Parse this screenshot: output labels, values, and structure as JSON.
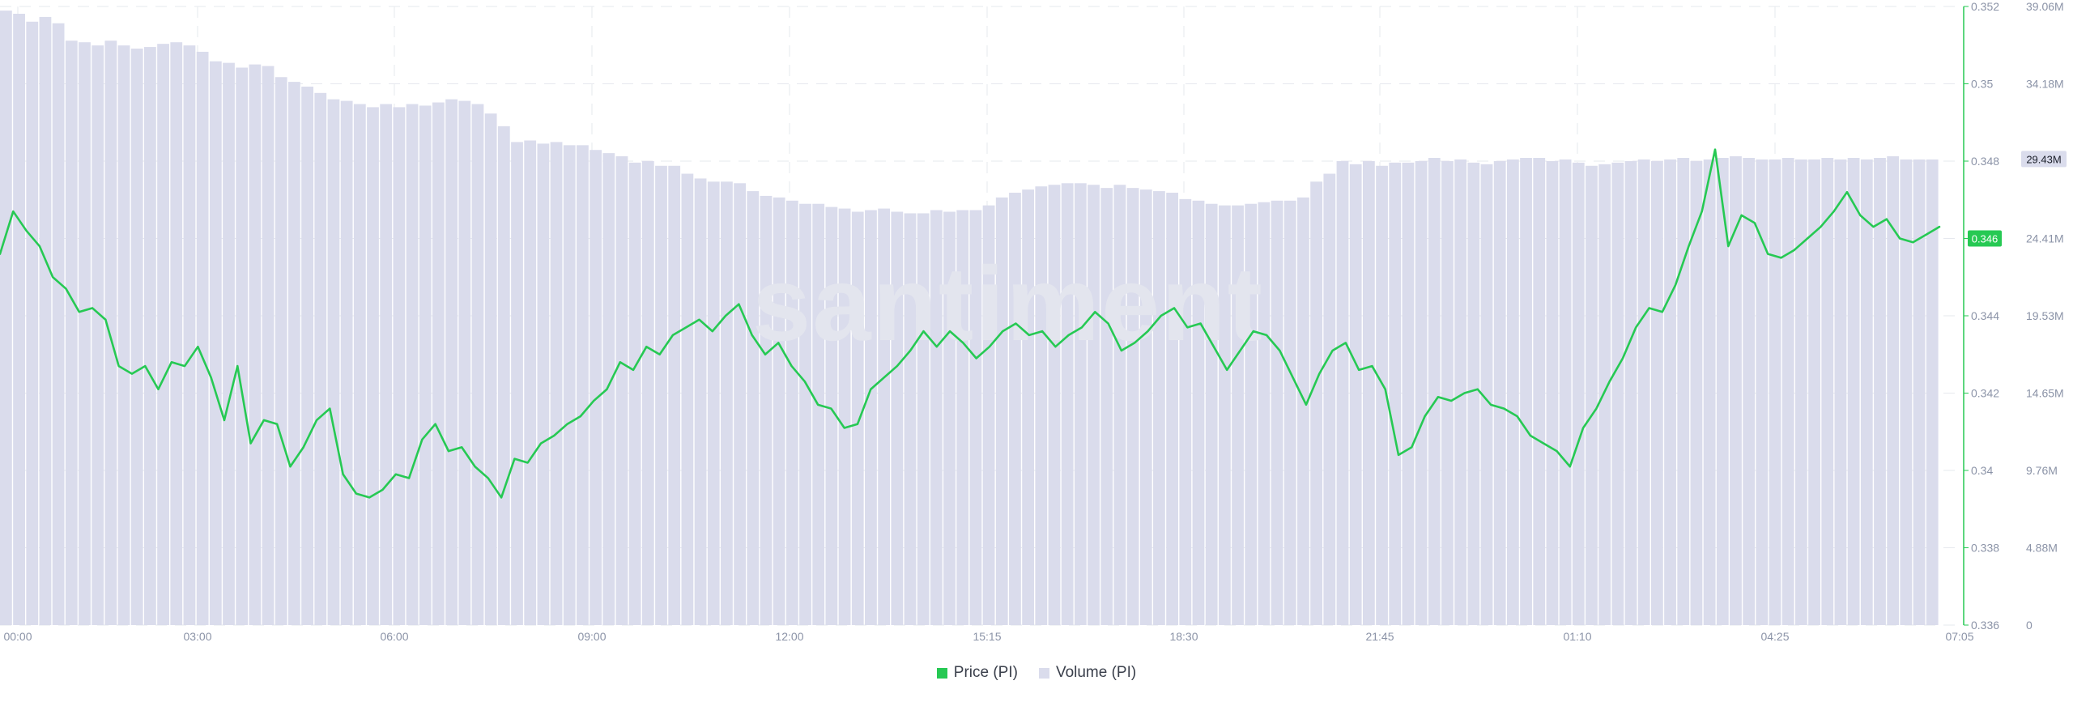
{
  "chart_data": {
    "type": "bar+line",
    "watermark": "santiment",
    "x_tick_labels": [
      "00:00",
      "03:00",
      "06:00",
      "09:00",
      "12:00",
      "15:15",
      "18:30",
      "21:45",
      "01:10",
      "04:25",
      "07:05"
    ],
    "price_axis": {
      "ticks": [
        "0.336",
        "0.338",
        "0.34",
        "0.342",
        "0.344",
        "0.346",
        "0.348",
        "0.35",
        "0.352"
      ],
      "ylim": [
        0.336,
        0.352
      ],
      "current_value": "0.346",
      "color": "#26c953"
    },
    "volume_axis": {
      "ticks": [
        "0",
        "4.88M",
        "9.76M",
        "14.65M",
        "19.53M",
        "24.41M",
        "29.43M",
        "34.18M",
        "39.06M"
      ],
      "ylim": [
        0,
        39.06
      ],
      "current_value": "29.43M",
      "color": "#dadcec"
    },
    "series": [
      {
        "name": "Price (PI)",
        "axis": "price",
        "color": "#26c953",
        "values": [
          0.3456,
          0.3467,
          0.3462,
          0.3458,
          0.345,
          0.3447,
          0.3441,
          0.3442,
          0.3439,
          0.3427,
          0.3425,
          0.3427,
          0.3421,
          0.3428,
          0.3427,
          0.3432,
          0.3424,
          0.3413,
          0.3427,
          0.3407,
          0.3413,
          0.3412,
          0.3401,
          0.3406,
          0.3413,
          0.3416,
          0.3399,
          0.3394,
          0.3393,
          0.3395,
          0.3399,
          0.3398,
          0.3408,
          0.3412,
          0.3405,
          0.3406,
          0.3401,
          0.3398,
          0.3393,
          0.3403,
          0.3402,
          0.3407,
          0.3409,
          0.3412,
          0.3414,
          0.3418,
          0.3421,
          0.3428,
          0.3426,
          0.3432,
          0.343,
          0.3435,
          0.3437,
          0.3439,
          0.3436,
          0.344,
          0.3443,
          0.3435,
          0.343,
          0.3433,
          0.3427,
          0.3423,
          0.3417,
          0.3416,
          0.3411,
          0.3412,
          0.3421,
          0.3424,
          0.3427,
          0.3431,
          0.3436,
          0.3432,
          0.3436,
          0.3433,
          0.3429,
          0.3432,
          0.3436,
          0.3438,
          0.3435,
          0.3436,
          0.3432,
          0.3435,
          0.3437,
          0.3441,
          0.3438,
          0.3431,
          0.3433,
          0.3436,
          0.344,
          0.3442,
          0.3437,
          0.3438,
          0.3432,
          0.3426,
          0.3431,
          0.3436,
          0.3435,
          0.3431,
          0.3424,
          0.3417,
          0.3425,
          0.3431,
          0.3433,
          0.3426,
          0.3427,
          0.3421,
          0.3404,
          0.3406,
          0.3414,
          0.3419,
          0.3418,
          0.342,
          0.3421,
          0.3417,
          0.3416,
          0.3414,
          0.3409,
          0.3407,
          0.3405,
          0.3401,
          0.3411,
          0.3416,
          0.3423,
          0.3429,
          0.3437,
          0.3442,
          0.3441,
          0.3448,
          0.3458,
          0.3467,
          0.3483,
          0.3458,
          0.3466,
          0.3464,
          0.3456,
          0.3455,
          0.3457,
          0.346,
          0.3463,
          0.3467,
          0.3472,
          0.3466,
          0.3463,
          0.3465,
          0.346,
          0.3459,
          0.3461,
          0.3463
        ]
      },
      {
        "name": "Volume (PI)",
        "axis": "volume",
        "color": "#dadcec",
        "values": [
          38.8,
          38.6,
          38.1,
          38.4,
          38.0,
          36.9,
          36.8,
          36.6,
          36.9,
          36.6,
          36.4,
          36.5,
          36.7,
          36.8,
          36.6,
          36.2,
          35.6,
          35.5,
          35.2,
          35.4,
          35.3,
          34.6,
          34.3,
          34.0,
          33.6,
          33.2,
          33.1,
          32.9,
          32.7,
          32.9,
          32.7,
          32.9,
          32.8,
          33.0,
          33.2,
          33.1,
          32.9,
          32.3,
          31.5,
          30.5,
          30.6,
          30.4,
          30.5,
          30.3,
          30.3,
          30.0,
          29.8,
          29.6,
          29.2,
          29.3,
          29.0,
          29.0,
          28.5,
          28.2,
          28.0,
          28.0,
          27.9,
          27.4,
          27.1,
          27.0,
          26.8,
          26.6,
          26.6,
          26.4,
          26.3,
          26.1,
          26.2,
          26.3,
          26.1,
          26.0,
          26.0,
          26.2,
          26.1,
          26.2,
          26.2,
          26.5,
          27.0,
          27.3,
          27.5,
          27.7,
          27.8,
          27.9,
          27.9,
          27.8,
          27.6,
          27.8,
          27.6,
          27.5,
          27.4,
          27.3,
          26.9,
          26.8,
          26.6,
          26.5,
          26.5,
          26.6,
          26.7,
          26.8,
          26.8,
          27.0,
          28.0,
          28.5,
          29.3,
          29.1,
          29.3,
          29.0,
          29.2,
          29.2,
          29.3,
          29.5,
          29.3,
          29.4,
          29.2,
          29.1,
          29.3,
          29.4,
          29.5,
          29.5,
          29.3,
          29.4,
          29.2,
          29.0,
          29.1,
          29.2,
          29.3,
          29.4,
          29.3,
          29.4,
          29.5,
          29.3,
          29.4,
          29.5,
          29.6,
          29.5,
          29.4,
          29.4,
          29.5,
          29.4,
          29.4,
          29.5,
          29.4,
          29.5,
          29.4,
          29.5,
          29.6,
          29.4,
          29.4,
          29.4
        ]
      }
    ],
    "legend": {
      "placement": "bottom-center"
    },
    "grid": true
  }
}
